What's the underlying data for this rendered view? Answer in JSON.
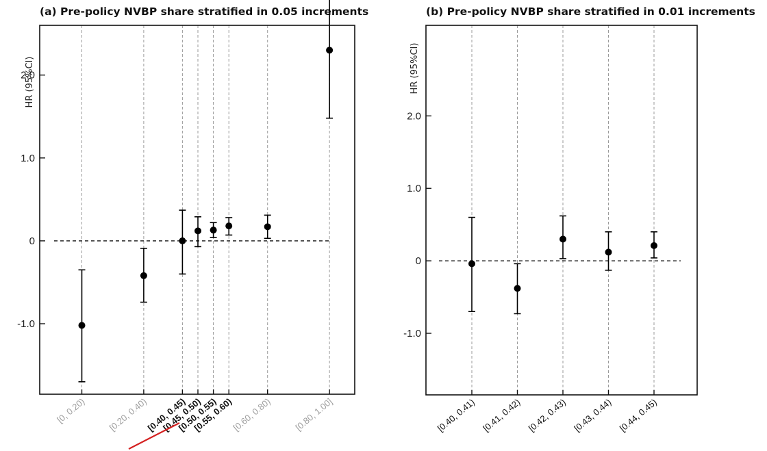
{
  "chart_data": [
    {
      "type": "scatter",
      "title": "(a) Pre-policy NVBP share stratified in 0.05 increments",
      "ylabel": "HR (95%CI)",
      "xlabel": "",
      "ylim": [
        -1.85,
        2.6
      ],
      "y_ticks": [
        {
          "value": 2.0,
          "label": "2.0"
        },
        {
          "value": 1.0,
          "label": "1.0"
        },
        {
          "value": 0,
          "label": "0"
        },
        {
          "value": -1.0,
          "label": "-1.0"
        }
      ],
      "reference_line": 0,
      "grid": "vertical dashed lines at each category",
      "categories": [
        "[0, 0.20)",
        "[0.20, 0.40)",
        "[0.40, 0.45)",
        "[0.45, 0.50)",
        "[0.50, 0.55)",
        "[0.55, 0.60)",
        "[0.60, 0.80)",
        "[0.80, 1.00]"
      ],
      "x_positions": [
        0.1,
        0.3,
        0.425,
        0.475,
        0.525,
        0.575,
        0.7,
        0.9
      ],
      "category_style": [
        "muted",
        "muted",
        "bold",
        "bold",
        "bold",
        "bold",
        "muted",
        "muted"
      ],
      "underlined_categories": [
        "[0.40, 0.45)",
        "[0.45, 0.50)"
      ],
      "underline_color": "#d42020",
      "estimates": [
        -1.02,
        -0.42,
        0.0,
        0.12,
        0.13,
        0.18,
        0.17,
        2.3
      ],
      "ci_lower": [
        -1.7,
        -0.74,
        -0.4,
        -0.07,
        0.04,
        0.07,
        0.03,
        1.48
      ],
      "ci_upper": [
        -0.35,
        -0.09,
        0.37,
        0.29,
        0.22,
        0.28,
        0.31,
        3.1
      ]
    },
    {
      "type": "scatter",
      "title": "(b) Pre-policy NVBP share stratified in 0.01 increments",
      "ylabel": "HR (95%CI)",
      "xlabel": "",
      "ylim": [
        -1.85,
        3.25
      ],
      "y_ticks": [
        {
          "value": 2.0,
          "label": "2.0"
        },
        {
          "value": 1.0,
          "label": "1.0"
        },
        {
          "value": 0,
          "label": "0"
        },
        {
          "value": -1.0,
          "label": "-1.0"
        }
      ],
      "reference_line": 0,
      "grid": "vertical dashed lines at each category",
      "categories": [
        "[0.40, 0.41)",
        "[0.41, 0.42)",
        "[0.42, 0.43)",
        "[0.43, 0.44)",
        "[0.44, 0.45)"
      ],
      "estimates": [
        -0.04,
        -0.38,
        0.3,
        0.12,
        0.21
      ],
      "ci_lower": [
        -0.7,
        -0.73,
        0.03,
        -0.13,
        0.04
      ],
      "ci_upper": [
        0.6,
        -0.04,
        0.62,
        0.4,
        0.4
      ]
    }
  ],
  "colors": {
    "axis": "#111111",
    "grid": "#9a9a9a",
    "marker": "#000000",
    "muted_tick": "#9e9e9e",
    "bold_tick": "#111111"
  }
}
